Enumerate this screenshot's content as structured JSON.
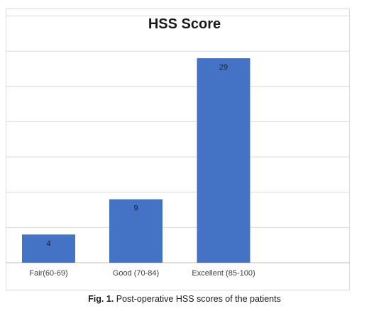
{
  "chart_data": {
    "type": "bar",
    "title": "HSS Score",
    "categories": [
      "Fair(60-69)",
      "Good (70-84)",
      "Excellent (85-100)"
    ],
    "values": [
      4,
      9,
      29
    ],
    "xlabel": "",
    "ylabel": "",
    "ylim": [
      0,
      35
    ],
    "grid": true,
    "y_axis_labels_shown": false,
    "bar_color": "#4472c4",
    "data_labels": [
      "4",
      "9",
      "29"
    ]
  },
  "caption": {
    "figure_label": "Fig. 1.",
    "text": " Post-operative HSS scores of the patients"
  }
}
